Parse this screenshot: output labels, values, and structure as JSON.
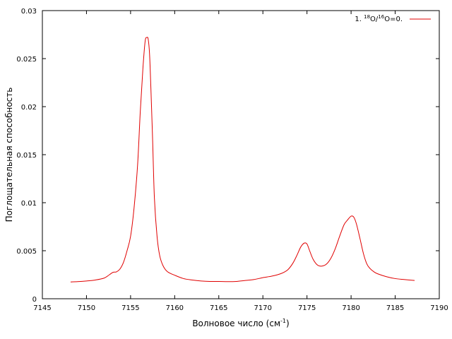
{
  "chart_data": {
    "type": "line",
    "xlabel": "Волновое число (см",
    "xlabel_sup": "-1",
    "xlabel_tail": ")",
    "ylabel": "Поглощательная способность",
    "xlim": [
      7145,
      7190
    ],
    "ylim": [
      0,
      0.03
    ],
    "x_ticks": [
      7145,
      7150,
      7155,
      7160,
      7165,
      7170,
      7175,
      7180,
      7185,
      7190
    ],
    "x_tick_labels": [
      "7145",
      "7150",
      "7155",
      "7160",
      "7165",
      "7170",
      "7175",
      "7180",
      "7185",
      "7190"
    ],
    "y_ticks": [
      0,
      0.005,
      0.01,
      0.015,
      0.02,
      0.025,
      0.03
    ],
    "y_tick_labels": [
      "0",
      "0.005",
      "0.01",
      "0.015",
      "0.02",
      "0.025",
      "0.03"
    ],
    "grid": false,
    "legend_position": "top-right",
    "legend": {
      "prefix": "1. ",
      "sup1": "18",
      "mid": "O/",
      "sup2": "16",
      "suffix": "O=0."
    },
    "series": [
      {
        "name": "1. 18O/16O=0.",
        "color": "#e00000",
        "x": [
          7148.2,
          7149.0,
          7150.0,
          7151.0,
          7152.0,
          7152.6,
          7153.0,
          7153.4,
          7153.8,
          7154.2,
          7154.6,
          7155.0,
          7155.4,
          7155.8,
          7156.1,
          7156.4,
          7156.65,
          7156.85,
          7157.0,
          7157.15,
          7157.3,
          7157.5,
          7157.7,
          7158.0,
          7158.3,
          7158.7,
          7159.2,
          7160.0,
          7161.0,
          7162.0,
          7163.0,
          7164.0,
          7165.0,
          7166.0,
          7167.0,
          7168.0,
          7169.0,
          7170.0,
          7171.0,
          7172.0,
          7172.8,
          7173.4,
          7173.9,
          7174.3,
          7174.7,
          7175.0,
          7175.3,
          7175.7,
          7176.2,
          7176.7,
          7177.2,
          7177.7,
          7178.2,
          7178.7,
          7179.2,
          7179.6,
          7180.0,
          7180.3,
          7180.6,
          7181.0,
          7181.4,
          7181.8,
          7182.2,
          7182.6,
          7183.0,
          7184.0,
          7185.0,
          7186.0,
          7187.2
        ],
        "y": [
          0.00175,
          0.00178,
          0.00185,
          0.00195,
          0.00215,
          0.0025,
          0.00275,
          0.0028,
          0.0031,
          0.0038,
          0.005,
          0.0065,
          0.0095,
          0.014,
          0.0195,
          0.024,
          0.0268,
          0.0272,
          0.027,
          0.0255,
          0.022,
          0.0165,
          0.0105,
          0.0065,
          0.0045,
          0.0034,
          0.0028,
          0.00245,
          0.0021,
          0.00195,
          0.00185,
          0.0018,
          0.0018,
          0.00178,
          0.0018,
          0.0019,
          0.002,
          0.0022,
          0.00235,
          0.0026,
          0.003,
          0.0037,
          0.0046,
          0.0054,
          0.0058,
          0.0057,
          0.005,
          0.0041,
          0.0035,
          0.0034,
          0.0036,
          0.0042,
          0.0052,
          0.0065,
          0.0077,
          0.0082,
          0.0086,
          0.0085,
          0.0078,
          0.0063,
          0.0047,
          0.0036,
          0.0031,
          0.0028,
          0.0026,
          0.0023,
          0.0021,
          0.002,
          0.0019
        ]
      }
    ]
  }
}
